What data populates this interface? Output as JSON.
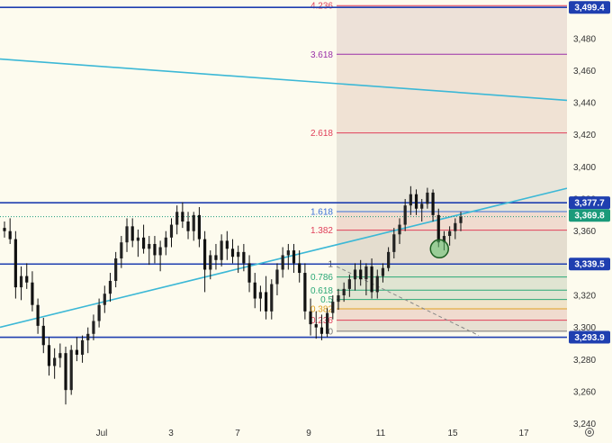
{
  "chart_data": {
    "type": "candlestick",
    "x_ticks": [
      "Jul",
      "3",
      "7",
      "9",
      "11",
      "15",
      "17"
    ],
    "y_ticks": [
      3240,
      3260,
      3280,
      3300,
      3320,
      3340,
      3360,
      3380,
      3400,
      3420,
      3440,
      3460,
      3480
    ],
    "ylim": [
      3228,
      3504
    ],
    "grid": false,
    "price_tags": [
      {
        "label": "3,499.4",
        "value": 3499.4,
        "color": "#1f3fb0"
      },
      {
        "label": "3,377.7",
        "value": 3377.7,
        "color": "#1f3fb0"
      },
      {
        "label": "3,369.8",
        "value": 3369.8,
        "color": "#1a9a7a"
      },
      {
        "label": "3,339.5",
        "value": 3339.5,
        "color": "#1f3fb0"
      },
      {
        "label": "3,293.9",
        "value": 3293.9,
        "color": "#1f3fb0"
      }
    ],
    "horizontal_levels": [
      3499.4,
      3377.7,
      3339.5,
      3293.9
    ],
    "fib_extension": {
      "levels": [
        {
          "label": "4.236",
          "value": 3500.5,
          "color": "#e0405a"
        },
        {
          "label": "3.618",
          "value": 3470.2,
          "color": "#9a30a8"
        },
        {
          "label": "2.618",
          "value": 3421.2,
          "color": "#e0405a"
        },
        {
          "label": "1.618",
          "value": 3372.2,
          "color": "#3a6fd8"
        },
        {
          "label": "1.382",
          "value": 3360.6,
          "color": "#e0405a"
        },
        {
          "label": "1",
          "value": 3339.5,
          "color": "#555555"
        },
        {
          "label": "0.786",
          "value": 3331.4,
          "color": "#2aa876"
        },
        {
          "label": "0.618",
          "value": 3323.2,
          "color": "#2aa876"
        },
        {
          "label": "0.5",
          "value": 3317.4,
          "color": "#2aa876"
        },
        {
          "label": "0.382",
          "value": 3311.6,
          "color": "#e0a020"
        },
        {
          "label": "0.236",
          "value": 3304.5,
          "color": "#e0405a"
        },
        {
          "label": "0",
          "value": 3297.6,
          "color": "#777777"
        }
      ]
    },
    "trend_lines": [
      {
        "from": 3467.2,
        "to": 3441.5,
        "color": "#3cb8d6"
      },
      {
        "from": 3300.1,
        "to": 3386.7,
        "color": "#3cb8d6"
      }
    ],
    "candles": [
      [
        3362,
        3366,
        3356,
        3360
      ],
      [
        3360,
        3368,
        3352,
        3355
      ],
      [
        3355,
        3360,
        3318,
        3325
      ],
      [
        3325,
        3338,
        3317,
        3332
      ],
      [
        3332,
        3340,
        3324,
        3328
      ],
      [
        3328,
        3335,
        3310,
        3314
      ],
      [
        3314,
        3318,
        3296,
        3301
      ],
      [
        3301,
        3306,
        3284,
        3289
      ],
      [
        3289,
        3294,
        3270,
        3276
      ],
      [
        3276,
        3287,
        3268,
        3281
      ],
      [
        3281,
        3290,
        3275,
        3284
      ],
      [
        3284,
        3288,
        3252,
        3261
      ],
      [
        3261,
        3289,
        3258,
        3286
      ],
      [
        3286,
        3294,
        3279,
        3283
      ],
      [
        3283,
        3295,
        3278,
        3292
      ],
      [
        3292,
        3300,
        3284,
        3296
      ],
      [
        3296,
        3308,
        3292,
        3304
      ],
      [
        3304,
        3318,
        3300,
        3314
      ],
      [
        3314,
        3326,
        3309,
        3321
      ],
      [
        3321,
        3334,
        3316,
        3329
      ],
      [
        3329,
        3347,
        3325,
        3343
      ],
      [
        3343,
        3357,
        3337,
        3353
      ],
      [
        3353,
        3368,
        3347,
        3363
      ],
      [
        3363,
        3368,
        3350,
        3354
      ],
      [
        3354,
        3361,
        3344,
        3356
      ],
      [
        3356,
        3364,
        3346,
        3349
      ],
      [
        3349,
        3357,
        3339,
        3352
      ],
      [
        3352,
        3357,
        3340,
        3345
      ],
      [
        3345,
        3354,
        3335,
        3350
      ],
      [
        3350,
        3360,
        3345,
        3356
      ],
      [
        3356,
        3368,
        3350,
        3364
      ],
      [
        3364,
        3376,
        3358,
        3372
      ],
      [
        3372,
        3378,
        3362,
        3366
      ],
      [
        3366,
        3372,
        3355,
        3360
      ],
      [
        3360,
        3372,
        3354,
        3370
      ],
      [
        3370,
        3375,
        3350,
        3355
      ],
      [
        3355,
        3360,
        3322,
        3336
      ],
      [
        3336,
        3348,
        3330,
        3345
      ],
      [
        3345,
        3352,
        3336,
        3342
      ],
      [
        3342,
        3358,
        3338,
        3354
      ],
      [
        3354,
        3360,
        3342,
        3349
      ],
      [
        3349,
        3355,
        3340,
        3344
      ],
      [
        3344,
        3351,
        3334,
        3347
      ],
      [
        3347,
        3352,
        3335,
        3340
      ],
      [
        3340,
        3345,
        3322,
        3328
      ],
      [
        3328,
        3334,
        3312,
        3318
      ],
      [
        3318,
        3326,
        3310,
        3322
      ],
      [
        3322,
        3332,
        3305,
        3310
      ],
      [
        3310,
        3330,
        3305,
        3327
      ],
      [
        3327,
        3340,
        3320,
        3336
      ],
      [
        3336,
        3350,
        3331,
        3345
      ],
      [
        3345,
        3352,
        3336,
        3348
      ],
      [
        3348,
        3352,
        3334,
        3340
      ],
      [
        3340,
        3348,
        3328,
        3334
      ],
      [
        3334,
        3340,
        3305,
        3310
      ],
      [
        3310,
        3318,
        3295,
        3302
      ],
      [
        3302,
        3310,
        3293,
        3300
      ],
      [
        3300,
        3308,
        3292,
        3296
      ],
      [
        3296,
        3312,
        3294,
        3309
      ],
      [
        3309,
        3320,
        3305,
        3316
      ],
      [
        3316,
        3324,
        3311,
        3320
      ],
      [
        3320,
        3328,
        3316,
        3324
      ],
      [
        3324,
        3333,
        3319,
        3330
      ],
      [
        3330,
        3340,
        3323,
        3336
      ],
      [
        3336,
        3342,
        3326,
        3330
      ],
      [
        3330,
        3340,
        3320,
        3338
      ],
      [
        3338,
        3343,
        3318,
        3322
      ],
      [
        3322,
        3336,
        3318,
        3332
      ],
      [
        3332,
        3340,
        3328,
        3337
      ],
      [
        3337,
        3350,
        3335,
        3347
      ],
      [
        3347,
        3362,
        3343,
        3358
      ],
      [
        3358,
        3368,
        3352,
        3364
      ],
      [
        3364,
        3380,
        3360,
        3376
      ],
      [
        3376,
        3388,
        3370,
        3383
      ],
      [
        3383,
        3386,
        3370,
        3374
      ],
      [
        3374,
        3380,
        3366,
        3377
      ],
      [
        3377,
        3387,
        3374,
        3384
      ],
      [
        3384,
        3386,
        3366,
        3370
      ],
      [
        3370,
        3374,
        3350,
        3353
      ],
      [
        3353,
        3360,
        3348,
        3357
      ],
      [
        3357,
        3363,
        3351,
        3360
      ],
      [
        3360,
        3368,
        3355,
        3365
      ],
      [
        3365,
        3372,
        3360,
        3369
      ]
    ]
  }
}
